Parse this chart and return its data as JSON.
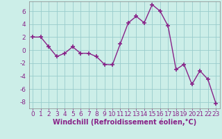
{
  "x": [
    0,
    1,
    2,
    3,
    4,
    5,
    6,
    7,
    8,
    9,
    10,
    11,
    12,
    13,
    14,
    15,
    16,
    17,
    18,
    19,
    20,
    21,
    22,
    23
  ],
  "y": [
    2,
    2,
    0.5,
    -1,
    -0.5,
    0.5,
    -0.5,
    -0.5,
    -1,
    -2.2,
    -2.3,
    1,
    4.2,
    5.2,
    4.2,
    7,
    6,
    3.7,
    -3,
    -2.2,
    -5.3,
    -3.2,
    -4.5,
    -8.2
  ],
  "line_color": "#882288",
  "marker": "+",
  "marker_size": 4,
  "marker_lw": 1.2,
  "bg_color": "#cceee8",
  "grid_color": "#99cccc",
  "xlabel": "Windchill (Refroidissement éolien,°C)",
  "xlabel_color": "#882288",
  "xlabel_fontsize": 7,
  "tick_fontsize": 6.5,
  "tick_color": "#882288",
  "ylim": [
    -9,
    7.5
  ],
  "yticks": [
    -8,
    -6,
    -4,
    -2,
    0,
    2,
    4,
    6
  ],
  "xticks": [
    0,
    1,
    2,
    3,
    4,
    5,
    6,
    7,
    8,
    9,
    10,
    11,
    12,
    13,
    14,
    15,
    16,
    17,
    18,
    19,
    20,
    21,
    22,
    23
  ],
  "linewidth": 1.0
}
